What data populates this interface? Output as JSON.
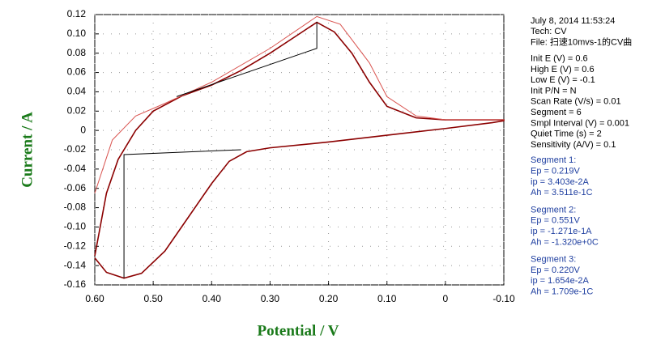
{
  "chart_data": {
    "type": "line",
    "x_label": "Potential / V",
    "y_label": "Current / A",
    "xlim": [
      0.6,
      -0.1
    ],
    "ylim": [
      -0.16,
      0.12
    ],
    "xticks": [
      {
        "value": 0.6,
        "label": "0.60"
      },
      {
        "value": 0.5,
        "label": "0.50"
      },
      {
        "value": 0.4,
        "label": "0.40"
      },
      {
        "value": 0.3,
        "label": "0.30"
      },
      {
        "value": 0.2,
        "label": "0.20"
      },
      {
        "value": 0.1,
        "label": "0.10"
      },
      0,
      {
        "value": -0.1,
        "label": "-0.10"
      }
    ],
    "yticks": [
      0.12,
      {
        "value": 0.1,
        "label": "0.10"
      },
      0.08,
      0.06,
      0.04,
      0.02,
      0,
      -0.02,
      -0.04,
      -0.06,
      -0.08,
      {
        "value": -0.1,
        "label": "-0.10"
      },
      -0.12,
      -0.14,
      -0.16
    ],
    "grid": true,
    "series": [
      {
        "color": "#8b0000",
        "x": [
          0.6,
          0.58,
          0.55,
          0.52,
          0.48,
          0.44,
          0.4,
          0.37,
          0.34,
          0.3,
          0.2,
          0.1,
          0.0,
          -0.08,
          -0.1,
          -0.1,
          -0.05,
          0.0,
          0.05,
          0.1,
          0.13,
          0.16,
          0.19,
          0.22,
          0.25,
          0.3,
          0.35,
          0.4,
          0.45,
          0.5,
          0.53,
          0.56,
          0.58,
          0.6
        ],
        "values": [
          -0.132,
          -0.147,
          -0.153,
          -0.148,
          -0.125,
          -0.09,
          -0.055,
          -0.032,
          -0.022,
          -0.018,
          -0.012,
          -0.005,
          0.002,
          0.008,
          0.01,
          0.011,
          0.011,
          0.011,
          0.013,
          0.025,
          0.05,
          0.08,
          0.102,
          0.112,
          0.1,
          0.08,
          0.062,
          0.047,
          0.036,
          0.02,
          0.0,
          -0.03,
          -0.065,
          -0.13
        ]
      },
      {
        "color": "#d9534f",
        "x": [
          0.6,
          0.57,
          0.53,
          0.48,
          0.4,
          0.3,
          0.22,
          0.18,
          0.13,
          0.1,
          0.05,
          0.0,
          -0.1
        ],
        "values": [
          -0.065,
          -0.01,
          0.015,
          0.028,
          0.05,
          0.085,
          0.118,
          0.11,
          0.07,
          0.035,
          0.015,
          0.011,
          0.011
        ]
      },
      {
        "color": "#000000",
        "x": [
          0.55,
          0.55,
          0.35
        ],
        "values": [
          -0.153,
          -0.025,
          -0.02
        ]
      },
      {
        "color": "#000000",
        "x": [
          0.46,
          0.22,
          0.22
        ],
        "values": [
          0.035,
          0.085,
          0.112
        ]
      }
    ],
    "info_lines": [
      "July 8, 2014   11:53:24",
      "Tech: CV",
      "File: 扫速10mvs-1的CV曲",
      "Init E (V) = 0.6",
      "High E (V) = 0.6",
      "Low E (V) = -0.1",
      "Init P/N = N",
      "Scan Rate (V/s) = 0.01",
      "Segment = 6",
      "Smpl Interval (V) = 0.001",
      "Quiet Time (s) = 2",
      "Sensitivity (A/V) = 0.1"
    ],
    "segments": [
      [
        "Segment 1:",
        "Ep = 0.219V",
        "ip = 3.403e-2A",
        "Ah = 3.511e-1C"
      ],
      [
        "Segment 2:",
        "Ep = 0.551V",
        "ip = -1.271e-1A",
        "Ah = -1.320e+0C"
      ],
      [
        "Segment 3:",
        "Ep = 0.220V",
        "ip = 1.654e-2A",
        "Ah = 1.709e-1C"
      ]
    ]
  }
}
